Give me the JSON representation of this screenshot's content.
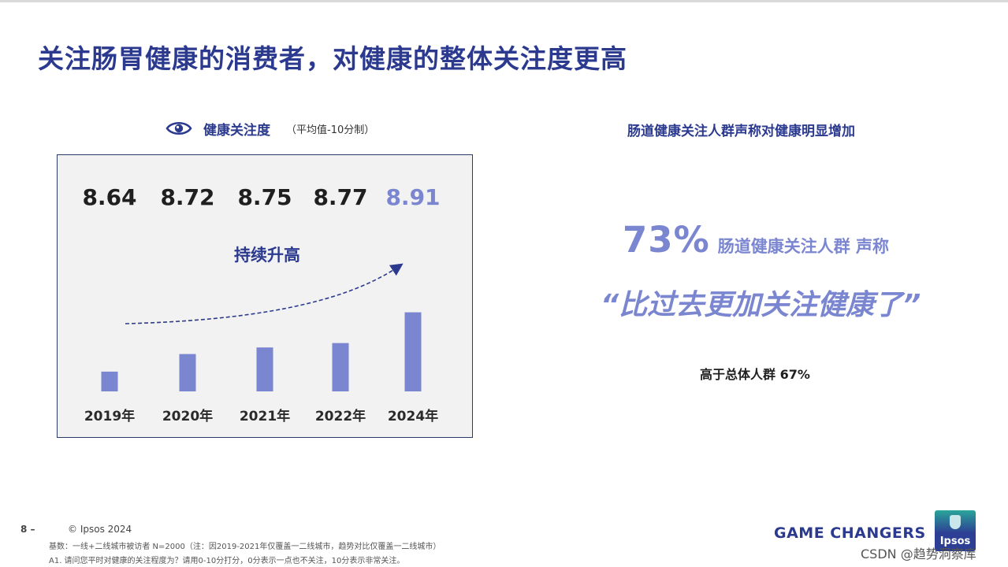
{
  "title": "关注肠胃健康的消费者，对健康的整体关注度更高",
  "left_panel": {
    "section_title": "健康关注度",
    "section_note": "（平均值-10分制）",
    "trend_label": "持续升高",
    "icon": "eye-icon"
  },
  "chart_data": {
    "type": "bar",
    "categories": [
      "2019年",
      "2020年",
      "2021年",
      "2022年",
      "2024年"
    ],
    "values": [
      8.64,
      8.72,
      8.75,
      8.77,
      8.91
    ],
    "value_labels": [
      "8.64",
      "8.72",
      "8.75",
      "8.77",
      "8.91"
    ],
    "title": "健康关注度",
    "subtitle": "（平均值-10分制）",
    "annotation": "持续升高",
    "highlight_index": 4,
    "colors": {
      "bar": "#7b86d0",
      "label": "#1f1f1f",
      "highlight": "#7b86d0"
    }
  },
  "right_panel": {
    "title": "肠道健康关注人群声称对健康明显增加",
    "stat_value": "73%",
    "stat_desc": "肠道健康关注人群 声称",
    "quote": "“比过去更加关注健康了”",
    "comparison": "高于总体人群 67%"
  },
  "footer": {
    "page_number": "8 –",
    "copyright": "© Ipsos 2024",
    "note_base": "基数：一线+二线城市被访者 N=2000（注：因2019-2021年仅覆盖一二线城市，趋势对比仅覆盖一二线城市）",
    "note_question": "A1. 请问您平时对健康的关注程度为？请用0-10分打分，0分表示一点也不关注，10分表示非常关注。",
    "tagline": "GAME CHANGERS",
    "logo_text": "Ipsos",
    "watermark": "CSDN @趋势洞察库"
  },
  "colors": {
    "title": "#2b3a8f",
    "accent": "#7b86d0",
    "panel_bg": "#f2f2f2",
    "panel_border": "#2b3a6f"
  }
}
